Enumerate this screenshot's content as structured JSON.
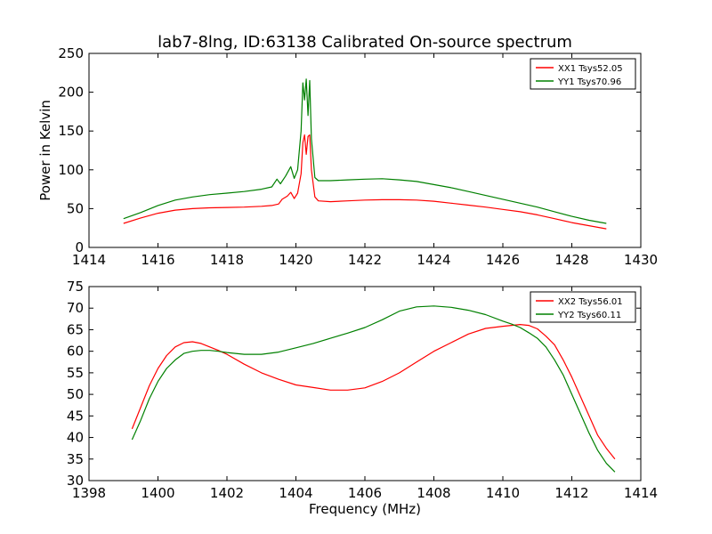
{
  "figure": {
    "title": "lab7-8lng, ID:63138 Calibrated On-source spectrum"
  },
  "chart_data": [
    {
      "type": "line",
      "title": "lab7-8lng, ID:63138 Calibrated On-source spectrum",
      "xlabel": "",
      "ylabel": "Power in Kelvin",
      "xlim": [
        1414,
        1430
      ],
      "ylim": [
        0,
        250
      ],
      "xticks": [
        1414,
        1416,
        1418,
        1420,
        1422,
        1424,
        1426,
        1428,
        1430
      ],
      "yticks": [
        0,
        50,
        100,
        150,
        200,
        250
      ],
      "grid": false,
      "legend_position": "top-right",
      "series": [
        {
          "name": "XX1 Tsys52.05",
          "color": "#ff0000",
          "x": [
            1415.0,
            1415.5,
            1416.0,
            1416.5,
            1417.0,
            1417.5,
            1418.0,
            1418.5,
            1419.0,
            1419.3,
            1419.5,
            1419.6,
            1419.75,
            1419.85,
            1419.95,
            1420.05,
            1420.15,
            1420.2,
            1420.25,
            1420.3,
            1420.35,
            1420.4,
            1420.45,
            1420.55,
            1420.65,
            1421.0,
            1421.5,
            1422.0,
            1422.5,
            1423.0,
            1423.5,
            1424.0,
            1424.5,
            1425.0,
            1425.5,
            1426.0,
            1426.5,
            1427.0,
            1427.5,
            1428.0,
            1428.5,
            1429.0
          ],
          "y": [
            31,
            38,
            44,
            48,
            50,
            51,
            51.5,
            52,
            53,
            54,
            56,
            62,
            66,
            71,
            63,
            70,
            95,
            135,
            145,
            120,
            143,
            145,
            100,
            65,
            60,
            59,
            60,
            61,
            61.5,
            61.5,
            61,
            59.5,
            57,
            54.5,
            52,
            49,
            46,
            42,
            37,
            32,
            28,
            24
          ]
        },
        {
          "name": "YY1 Tsys70.96",
          "color": "#008000",
          "x": [
            1415.0,
            1415.5,
            1416.0,
            1416.5,
            1417.0,
            1417.5,
            1418.0,
            1418.5,
            1419.0,
            1419.3,
            1419.45,
            1419.55,
            1419.7,
            1419.85,
            1419.95,
            1420.05,
            1420.15,
            1420.2,
            1420.25,
            1420.3,
            1420.35,
            1420.4,
            1420.45,
            1420.55,
            1420.65,
            1421.0,
            1421.5,
            1422.0,
            1422.5,
            1423.0,
            1423.5,
            1424.0,
            1424.5,
            1425.0,
            1425.5,
            1426.0,
            1426.5,
            1427.0,
            1427.5,
            1428.0,
            1428.5,
            1429.0
          ],
          "y": [
            37,
            45,
            54,
            61,
            65,
            68,
            70,
            72,
            75,
            78,
            88,
            82,
            92,
            104,
            89,
            100,
            150,
            212,
            190,
            217,
            170,
            215,
            140,
            90,
            86,
            86,
            87,
            88,
            88.5,
            87,
            85,
            81,
            77,
            72,
            67,
            62,
            57,
            52,
            46,
            40,
            35,
            31
          ]
        }
      ]
    },
    {
      "type": "line",
      "title": "",
      "xlabel": "Frequency (MHz)",
      "ylabel": "",
      "xlim": [
        1398,
        1414
      ],
      "ylim": [
        30,
        75
      ],
      "xticks": [
        1398,
        1400,
        1402,
        1404,
        1406,
        1408,
        1410,
        1412,
        1414
      ],
      "yticks": [
        30,
        35,
        40,
        45,
        50,
        55,
        60,
        65,
        70,
        75
      ],
      "grid": false,
      "legend_position": "top-right",
      "series": [
        {
          "name": "XX2 Tsys56.01",
          "color": "#ff0000",
          "x": [
            1399.25,
            1399.5,
            1399.75,
            1400.0,
            1400.25,
            1400.5,
            1400.75,
            1401.0,
            1401.25,
            1401.5,
            1401.75,
            1402.0,
            1402.5,
            1403.0,
            1403.5,
            1404.0,
            1404.5,
            1405.0,
            1405.5,
            1406.0,
            1406.5,
            1407.0,
            1407.5,
            1408.0,
            1408.5,
            1409.0,
            1409.5,
            1410.0,
            1410.25,
            1410.5,
            1410.75,
            1411.0,
            1411.25,
            1411.5,
            1411.75,
            1412.0,
            1412.25,
            1412.5,
            1412.75,
            1413.0,
            1413.25
          ],
          "y": [
            42,
            47,
            52,
            56,
            59,
            61,
            62,
            62.2,
            61.8,
            61,
            60.2,
            59.3,
            57,
            55,
            53.5,
            52.2,
            51.6,
            51,
            51,
            51.5,
            53,
            55,
            57.5,
            60,
            62,
            64,
            65.3,
            65.8,
            66,
            66.2,
            66,
            65.2,
            63.5,
            61.5,
            58,
            54,
            49.5,
            45,
            40.5,
            37.5,
            35
          ]
        },
        {
          "name": "YY2 Tsys60.11",
          "color": "#008000",
          "x": [
            1399.25,
            1399.5,
            1399.75,
            1400.0,
            1400.25,
            1400.5,
            1400.75,
            1401.0,
            1401.25,
            1401.5,
            1401.75,
            1402.0,
            1402.5,
            1403.0,
            1403.5,
            1404.0,
            1404.5,
            1405.0,
            1405.5,
            1406.0,
            1406.5,
            1407.0,
            1407.5,
            1408.0,
            1408.5,
            1409.0,
            1409.5,
            1410.0,
            1410.25,
            1410.5,
            1410.75,
            1411.0,
            1411.25,
            1411.5,
            1411.75,
            1412.0,
            1412.25,
            1412.5,
            1412.75,
            1413.0,
            1413.25
          ],
          "y": [
            39.5,
            44,
            49,
            53,
            56,
            58,
            59.5,
            60,
            60.2,
            60.2,
            60,
            59.7,
            59.3,
            59.3,
            59.8,
            60.8,
            61.8,
            63,
            64.2,
            65.5,
            67.3,
            69.3,
            70.3,
            70.5,
            70.2,
            69.5,
            68.5,
            67,
            66.3,
            65.5,
            64.3,
            63,
            61,
            58,
            54.5,
            50,
            45.5,
            41,
            37,
            34,
            32
          ]
        }
      ]
    }
  ]
}
